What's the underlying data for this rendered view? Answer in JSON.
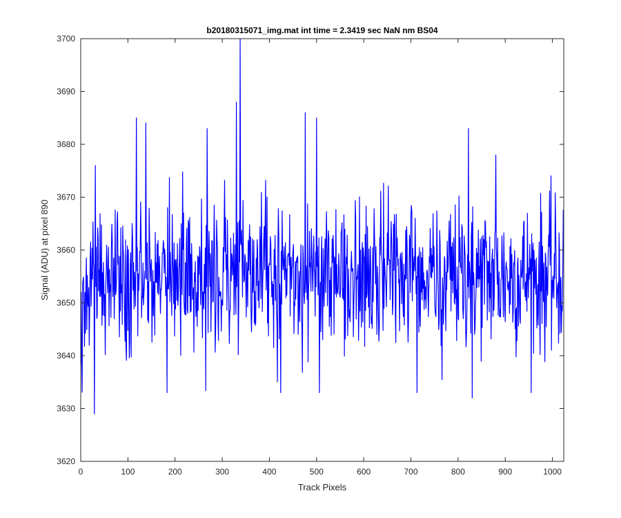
{
  "chart_data": {
    "type": "line",
    "title": "b20180315071_img.mat int time = 2.3419 sec  NaN nm BS04",
    "xlabel": "Track Pixels",
    "ylabel": "Signal (ADU) at pixel 890",
    "xlim": [
      0,
      1024
    ],
    "ylim": [
      3620,
      3700
    ],
    "xticks": [
      0,
      100,
      200,
      300,
      400,
      500,
      600,
      700,
      800,
      900,
      1000
    ],
    "yticks": [
      3620,
      3630,
      3640,
      3650,
      3660,
      3670,
      3680,
      3690,
      3700
    ],
    "grid": false,
    "legend": "none",
    "series": [
      {
        "color": "#0000ff",
        "noise_model": {
          "n_points": 1024,
          "mean": 3655,
          "std": 7
        },
        "notable_points": [
          {
            "x": 29,
            "y": 3629
          },
          {
            "x": 31,
            "y": 3676
          },
          {
            "x": 118,
            "y": 3685
          },
          {
            "x": 138,
            "y": 3684
          },
          {
            "x": 268,
            "y": 3683
          },
          {
            "x": 330,
            "y": 3688
          },
          {
            "x": 338,
            "y": 3700
          },
          {
            "x": 424,
            "y": 3633
          },
          {
            "x": 476,
            "y": 3686
          },
          {
            "x": 500,
            "y": 3685
          },
          {
            "x": 822,
            "y": 3683
          },
          {
            "x": 830,
            "y": 3632
          },
          {
            "x": 880,
            "y": 3678
          }
        ]
      }
    ]
  }
}
